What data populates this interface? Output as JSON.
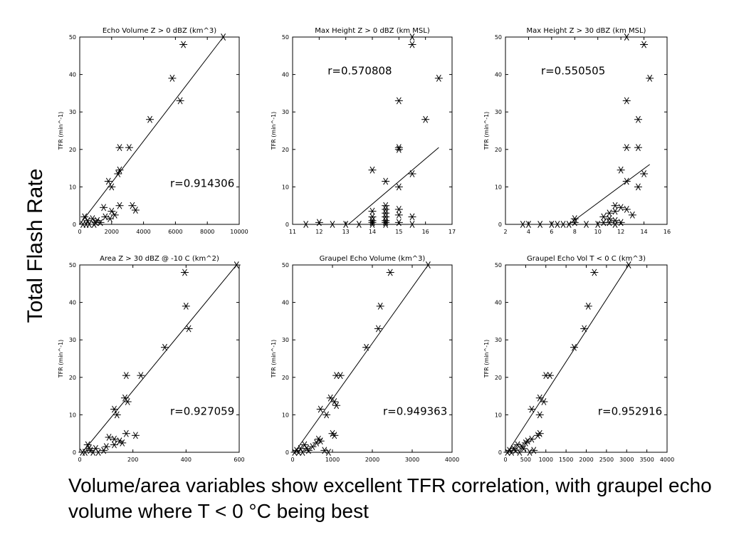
{
  "side_title": "Total Flash Rate",
  "caption": "Volume/area variables show excellent TFR correlation, with graupel echo volume where T < 0 °C being best",
  "chart_data": [
    {
      "type": "scatter",
      "title": "Echo Volume Z > 0 dBZ (km^3)",
      "ylabel": "TFR (min^-1)",
      "xlim": [
        0,
        10000
      ],
      "ylim": [
        0,
        50
      ],
      "xticks": [
        0,
        2000,
        4000,
        6000,
        8000,
        10000
      ],
      "yticks": [
        0,
        10,
        20,
        30,
        40,
        50
      ],
      "annotation": "r=0.914306",
      "fit": [
        [
          0,
          0
        ],
        [
          9000,
          50
        ]
      ],
      "points": [
        [
          9000,
          50
        ],
        [
          6500,
          48
        ],
        [
          5800,
          39
        ],
        [
          6300,
          33
        ],
        [
          4400,
          28
        ],
        [
          2500,
          20.5
        ],
        [
          3100,
          20.5
        ],
        [
          2500,
          14.5
        ],
        [
          2400,
          13.5
        ],
        [
          1800,
          11.5
        ],
        [
          2000,
          10
        ],
        [
          3300,
          5
        ],
        [
          3500,
          3.8
        ],
        [
          2500,
          5
        ],
        [
          1500,
          4.5
        ],
        [
          2000,
          3.5
        ],
        [
          2200,
          2.5
        ],
        [
          1900,
          1.5
        ],
        [
          1600,
          2
        ],
        [
          300,
          2
        ],
        [
          500,
          1
        ],
        [
          800,
          1.5
        ],
        [
          1000,
          0.5
        ],
        [
          1300,
          0.5
        ],
        [
          400,
          0
        ],
        [
          200,
          0
        ],
        [
          600,
          0
        ],
        [
          900,
          0
        ],
        [
          1100,
          1
        ]
      ]
    },
    {
      "type": "scatter",
      "title": "Max Height Z > 0 dBZ (km MSL)",
      "ylabel": "TFR (min^-1)",
      "xlim": [
        11,
        17
      ],
      "ylim": [
        0,
        50
      ],
      "xticks": [
        11,
        12,
        13,
        14,
        15,
        16,
        17
      ],
      "yticks": [
        0,
        10,
        20,
        30,
        40,
        50
      ],
      "annotation": "r=0.570808",
      "fit": [
        [
          13.1,
          0
        ],
        [
          16.5,
          20.5
        ]
      ],
      "points": [
        [
          15.5,
          50
        ],
        [
          15.5,
          48
        ],
        [
          16.5,
          39
        ],
        [
          15,
          33
        ],
        [
          16,
          28
        ],
        [
          15,
          20.5
        ],
        [
          15,
          20
        ],
        [
          14,
          14.5
        ],
        [
          15.5,
          13.5
        ],
        [
          14.5,
          11.5
        ],
        [
          15,
          10
        ],
        [
          14.5,
          5
        ],
        [
          14.5,
          4
        ],
        [
          14.5,
          3
        ],
        [
          14,
          3.5
        ],
        [
          14,
          2
        ],
        [
          14.5,
          2
        ],
        [
          15,
          4
        ],
        [
          15,
          2.5
        ],
        [
          15.5,
          2
        ],
        [
          14,
          1
        ],
        [
          14.5,
          1
        ],
        [
          14,
          0.5
        ],
        [
          14.5,
          0.5
        ],
        [
          15,
          0.5
        ],
        [
          15.5,
          0
        ],
        [
          13.5,
          0
        ],
        [
          12,
          0.5
        ],
        [
          12.5,
          0
        ],
        [
          11.5,
          0
        ],
        [
          13,
          0
        ],
        [
          14,
          0
        ],
        [
          14.5,
          0
        ]
      ]
    },
    {
      "type": "scatter",
      "title": "Max Height Z > 30 dBZ (km MSL)",
      "ylabel": "TFR (min^-1)",
      "xlim": [
        2,
        16
      ],
      "ylim": [
        0,
        50
      ],
      "xticks": [
        2,
        4,
        6,
        8,
        10,
        12,
        14,
        16
      ],
      "yticks": [
        0,
        10,
        20,
        30,
        40,
        50
      ],
      "annotation": "r=0.550505",
      "fit": [
        [
          7.5,
          0
        ],
        [
          14.5,
          16
        ]
      ],
      "points": [
        [
          12.5,
          50
        ],
        [
          14,
          48
        ],
        [
          14.5,
          39
        ],
        [
          12.5,
          33
        ],
        [
          13.5,
          28
        ],
        [
          12.5,
          20.5
        ],
        [
          13.5,
          20.5
        ],
        [
          12,
          14.5
        ],
        [
          14,
          13.5
        ],
        [
          12.5,
          11.5
        ],
        [
          13.5,
          10
        ],
        [
          11.5,
          5
        ],
        [
          12,
          4.5
        ],
        [
          12.5,
          4
        ],
        [
          11,
          3
        ],
        [
          11.5,
          3.5
        ],
        [
          13,
          2.5
        ],
        [
          10.5,
          2
        ],
        [
          11,
          1.5
        ],
        [
          11.5,
          1
        ],
        [
          10.5,
          0.5
        ],
        [
          11,
          0.5
        ],
        [
          11.5,
          0
        ],
        [
          12,
          0.5
        ],
        [
          8,
          1.5
        ],
        [
          8,
          0.5
        ],
        [
          7.5,
          0
        ],
        [
          9,
          0
        ],
        [
          10,
          0
        ],
        [
          6,
          0
        ],
        [
          5,
          0
        ],
        [
          4,
          0
        ],
        [
          3.5,
          0
        ],
        [
          6.5,
          0
        ],
        [
          7,
          0
        ]
      ]
    },
    {
      "type": "scatter",
      "title": "Area Z > 30 dBZ @ -10 C (km^2)",
      "ylabel": "TFR (min^-1)",
      "xlim": [
        0,
        600
      ],
      "ylim": [
        0,
        50
      ],
      "xticks": [
        0,
        200,
        400,
        600
      ],
      "yticks": [
        0,
        10,
        20,
        30,
        40,
        50
      ],
      "annotation": "r=0.927059",
      "fit": [
        [
          10,
          0
        ],
        [
          590,
          50
        ]
      ],
      "points": [
        [
          590,
          50
        ],
        [
          395,
          48
        ],
        [
          400,
          39
        ],
        [
          410,
          33
        ],
        [
          320,
          28
        ],
        [
          175,
          20.5
        ],
        [
          230,
          20.5
        ],
        [
          170,
          14.5
        ],
        [
          180,
          13.5
        ],
        [
          130,
          11.5
        ],
        [
          140,
          10
        ],
        [
          175,
          5
        ],
        [
          210,
          4.5
        ],
        [
          110,
          4
        ],
        [
          130,
          3.5
        ],
        [
          150,
          3
        ],
        [
          160,
          2.5
        ],
        [
          130,
          2
        ],
        [
          100,
          1.5
        ],
        [
          60,
          1
        ],
        [
          40,
          0.5
        ],
        [
          30,
          2
        ],
        [
          50,
          0
        ],
        [
          20,
          0
        ],
        [
          70,
          0
        ],
        [
          90,
          0.5
        ],
        [
          10,
          0
        ],
        [
          35,
          1
        ]
      ]
    },
    {
      "type": "scatter",
      "title": "Graupel Echo Volume (km^3)",
      "ylabel": "TFR (min^-1)",
      "xlim": [
        0,
        4000
      ],
      "ylim": [
        0,
        50
      ],
      "xticks": [
        0,
        1000,
        2000,
        3000,
        4000
      ],
      "yticks": [
        0,
        10,
        20,
        30,
        40,
        50
      ],
      "annotation": "r=0.949363",
      "fit": [
        [
          50,
          0
        ],
        [
          3400,
          50
        ]
      ],
      "points": [
        [
          3400,
          50
        ],
        [
          2450,
          48
        ],
        [
          2200,
          39
        ],
        [
          2150,
          33
        ],
        [
          1850,
          28
        ],
        [
          1100,
          20.5
        ],
        [
          1200,
          20.5
        ],
        [
          950,
          14.5
        ],
        [
          1050,
          13.5
        ],
        [
          1100,
          12.5
        ],
        [
          700,
          11.5
        ],
        [
          850,
          10
        ],
        [
          1000,
          5
        ],
        [
          1050,
          4.5
        ],
        [
          650,
          3.5
        ],
        [
          700,
          3
        ],
        [
          600,
          2.5
        ],
        [
          500,
          1.5
        ],
        [
          300,
          2
        ],
        [
          200,
          1
        ],
        [
          100,
          0.5
        ],
        [
          400,
          0.5
        ],
        [
          50,
          0
        ],
        [
          150,
          0
        ],
        [
          250,
          0
        ],
        [
          900,
          0
        ],
        [
          800,
          0.5
        ],
        [
          350,
          1
        ]
      ]
    },
    {
      "type": "scatter",
      "title": "Graupel Echo Vol T < 0 C (km^3)",
      "ylabel": "TFR (min^-1)",
      "xlim": [
        0,
        4000
      ],
      "ylim": [
        0,
        50
      ],
      "xticks": [
        0,
        500,
        1000,
        1500,
        2000,
        2500,
        3000,
        3500,
        4000
      ],
      "yticks": [
        0,
        10,
        20,
        30,
        40,
        50
      ],
      "annotation": "r=0.952916",
      "fit": [
        [
          50,
          0
        ],
        [
          3050,
          50
        ]
      ],
      "points": [
        [
          3050,
          50
        ],
        [
          2200,
          48
        ],
        [
          2050,
          39
        ],
        [
          1950,
          33
        ],
        [
          1700,
          28
        ],
        [
          1000,
          20.5
        ],
        [
          1100,
          20.5
        ],
        [
          850,
          14.5
        ],
        [
          950,
          13.5
        ],
        [
          650,
          11.5
        ],
        [
          850,
          10
        ],
        [
          850,
          5
        ],
        [
          800,
          4.5
        ],
        [
          650,
          3.5
        ],
        [
          550,
          3
        ],
        [
          500,
          2.5
        ],
        [
          400,
          1.5
        ],
        [
          300,
          2
        ],
        [
          200,
          1
        ],
        [
          100,
          0.5
        ],
        [
          250,
          0.5
        ],
        [
          50,
          0
        ],
        [
          150,
          0
        ],
        [
          350,
          0
        ],
        [
          600,
          0
        ],
        [
          700,
          0.5
        ],
        [
          450,
          1
        ]
      ]
    }
  ]
}
